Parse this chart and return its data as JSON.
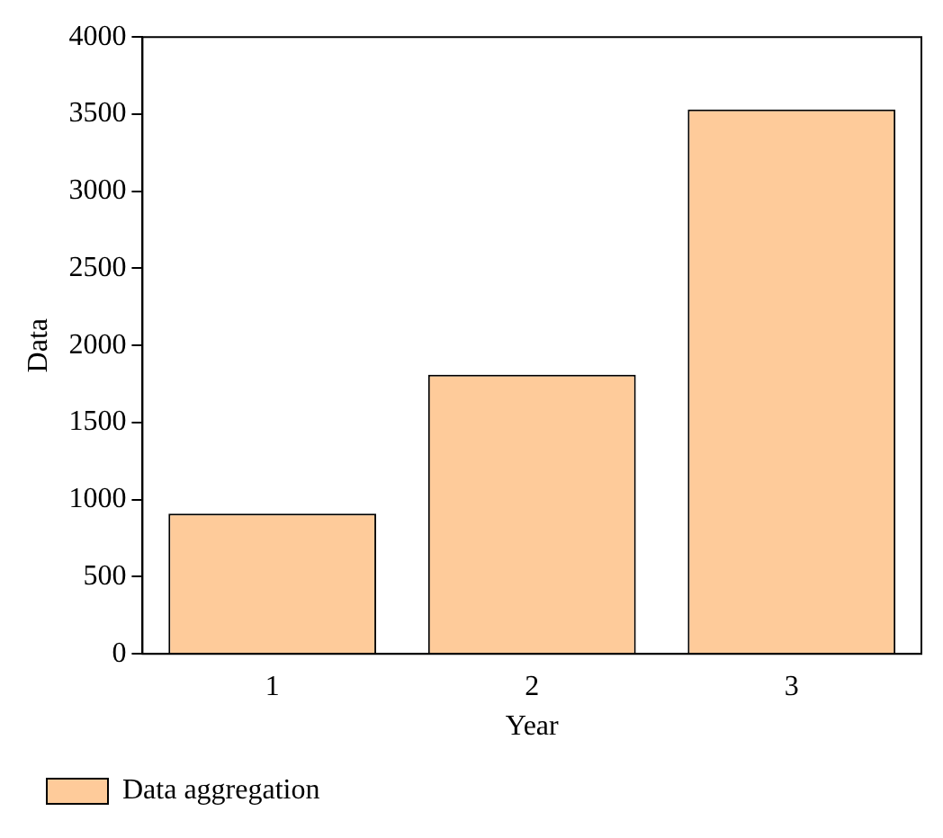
{
  "chart_data": {
    "type": "bar",
    "xlabel": "Year",
    "ylabel": "Data",
    "categories": [
      "1",
      "2",
      "3"
    ],
    "series": [
      {
        "name": "Data aggregation",
        "color": "#fecb9a",
        "values": [
          910,
          1810,
          3530
        ]
      }
    ],
    "ylim": [
      0,
      4000
    ],
    "yticks": [
      0,
      500,
      1000,
      1500,
      2000,
      2500,
      3000,
      3500,
      4000
    ],
    "grid": false,
    "legend": "bottom left"
  }
}
